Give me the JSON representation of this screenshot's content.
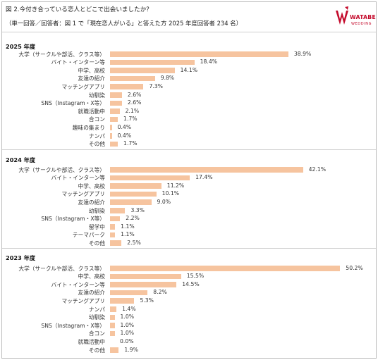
{
  "header": {
    "title": "図 2.今付き合っている恋人とどこで出会いましたか？",
    "subtitle": "（単一回答／回答者：図 1 で「現在恋人がいる」と答えた方 2025 年度回答者 234 名）"
  },
  "logo": {
    "brand": "WATABE",
    "sub": "WEDDING"
  },
  "chart_data": [
    {
      "type": "bar",
      "orientation": "horizontal",
      "title": "2025 年度",
      "categories": [
        "大学（サークルや部活、クラス等）",
        "バイト・インターン等",
        "中学、高校",
        "友達の紹介",
        "マッチングアプリ",
        "幼馴染",
        "SNS（Instagram・X等）",
        "就職活動中",
        "合コン",
        "趣味の集まり",
        "ナンパ",
        "その他"
      ],
      "values": [
        38.9,
        18.4,
        14.1,
        9.8,
        7.3,
        2.6,
        2.6,
        2.1,
        1.7,
        0.4,
        0.4,
        1.7
      ],
      "labels": [
        "38.9%",
        "18.4%",
        "14.1%",
        "9.8%",
        "7.3%",
        "2.6%",
        "2.6%",
        "2.1%",
        "1.7%",
        "0.4%",
        "0.4%",
        "1.7%"
      ],
      "unit": "%",
      "color": "#f6c49f",
      "xlim": [
        0,
        55
      ]
    },
    {
      "type": "bar",
      "orientation": "horizontal",
      "title": "2024 年度",
      "categories": [
        "大学（サークルや部活、クラス等）",
        "バイト・インターン等",
        "中学、高校",
        "マッチングアプリ",
        "友達の紹介",
        "幼馴染",
        "SNS（Instagram・X等）",
        "留学中",
        "テーマパーク",
        "その他"
      ],
      "values": [
        42.1,
        17.4,
        11.2,
        10.1,
        9.0,
        3.3,
        2.2,
        1.1,
        1.1,
        2.5
      ],
      "labels": [
        "42.1%",
        "17.4%",
        "11.2%",
        "10.1%",
        "9.0%",
        "3.3%",
        "2.2%",
        "1.1%",
        "1.1%",
        "2.5%"
      ],
      "unit": "%",
      "color": "#f6c49f",
      "xlim": [
        0,
        55
      ]
    },
    {
      "type": "bar",
      "orientation": "horizontal",
      "title": "2023 年度",
      "categories": [
        "大学（サークルや部活、クラス等）",
        "中学、高校",
        "バイト・インターン等",
        "友達の紹介",
        "マッチングアプリ",
        "ナンパ",
        "幼馴染",
        "SNS（Instagram・X等）",
        "合コン",
        "就職活動中",
        "その他"
      ],
      "values": [
        50.2,
        15.5,
        14.5,
        8.2,
        5.3,
        1.4,
        1.0,
        1.0,
        1.0,
        0.0,
        1.9
      ],
      "labels": [
        "50.2%",
        "15.5%",
        "14.5%",
        "8.2%",
        "5.3%",
        "1.4%",
        "1.0%",
        "1.0%",
        "1.0%",
        "0.0%",
        "1.9%"
      ],
      "unit": "%",
      "color": "#f6c49f",
      "xlim": [
        0,
        55
      ]
    }
  ]
}
